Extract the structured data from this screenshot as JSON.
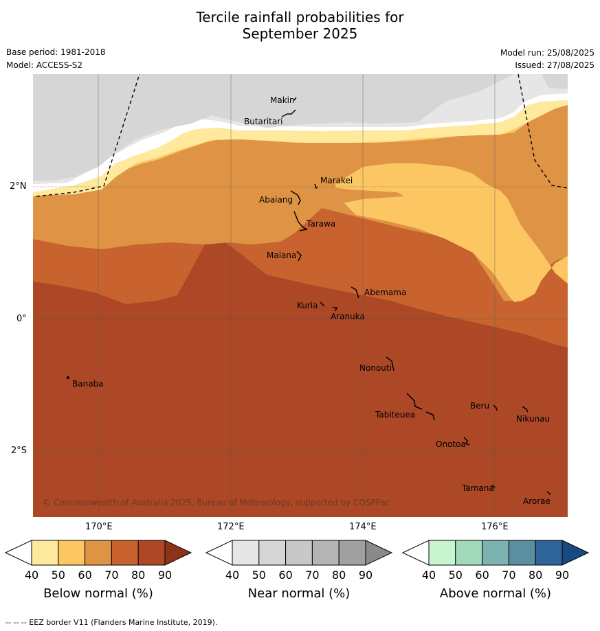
{
  "title_line1": "Tercile rainfall probabilities for",
  "title_line2": "September 2025",
  "meta": {
    "base_period": "Base period: 1981-2018",
    "model": "Model: ACCESS-S2",
    "model_run": "Model run: 25/08/2025",
    "issued": "Issued: 27/08/2025"
  },
  "axes": {
    "lon_ticks": [
      "170°E",
      "172°E",
      "174°E",
      "176°E"
    ],
    "lat_ticks": [
      "2°N",
      "0°",
      "2°S"
    ]
  },
  "places": [
    {
      "name": "Makin"
    },
    {
      "name": "Butaritari"
    },
    {
      "name": "Marakei"
    },
    {
      "name": "Abaiang"
    },
    {
      "name": "Tarawa"
    },
    {
      "name": "Maiana"
    },
    {
      "name": "Abemama"
    },
    {
      "name": "Kuria"
    },
    {
      "name": "Aranuka"
    },
    {
      "name": "Nonouti"
    },
    {
      "name": "Banaba"
    },
    {
      "name": "Beru"
    },
    {
      "name": "Nikunau"
    },
    {
      "name": "Tabiteuea"
    },
    {
      "name": "Onotoa"
    },
    {
      "name": "Tamana"
    },
    {
      "name": "Arorae"
    }
  ],
  "copyright": "© Commonwealth of Australia 2025, Bureau of Meteorology, supported by COSPPac",
  "colorbars": [
    {
      "label": "Below normal (%)",
      "ticks": [
        "40",
        "50",
        "60",
        "70",
        "80",
        "90"
      ],
      "colors": [
        "#ffffff",
        "#fee99d",
        "#fcc762",
        "#de9444",
        "#c8632f",
        "#ac4826",
        "#8c3418"
      ]
    },
    {
      "label": "Near normal (%)",
      "ticks": [
        "40",
        "50",
        "60",
        "70",
        "80",
        "90"
      ],
      "colors": [
        "#ffffff",
        "#e6e6e6",
        "#d6d6d6",
        "#c8c8c8",
        "#b4b4b4",
        "#a0a0a0",
        "#8a8a8a"
      ]
    },
    {
      "label": "Above normal (%)",
      "ticks": [
        "40",
        "50",
        "60",
        "70",
        "80",
        "90"
      ],
      "colors": [
        "#ffffff",
        "#c8f5ce",
        "#a2d9bc",
        "#7ab3b0",
        "#5a8ea0",
        "#2e6498",
        "#174a80"
      ]
    }
  ],
  "footer": "--  --  -- EEZ border V11 (Flanders Marine Institute, 2019)."
}
